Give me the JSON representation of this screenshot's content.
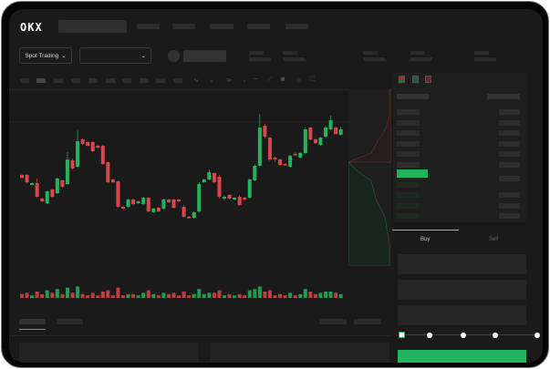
{
  "header": {
    "logo": "OKX"
  },
  "toolbar": {
    "market_select": "Spot Trading",
    "pair_select": ""
  },
  "trade": {
    "buy_tab": "Buy",
    "sell_tab": "Sell",
    "slider_percent": 0
  },
  "colors": {
    "up": "#22b35e",
    "down": "#d9474b",
    "background": "#1a1a1a",
    "buy_button": "#22b35e"
  },
  "chart_data": {
    "type": "candlestick",
    "candles": [
      [
        118,
        115,
        119,
        114,
        3
      ],
      [
        118,
        110,
        119,
        109,
        4
      ],
      [
        107,
        109,
        110,
        107,
        2
      ],
      [
        109,
        94,
        114,
        93,
        5
      ],
      [
        92,
        89,
        93,
        88,
        3
      ],
      [
        87,
        100,
        101,
        86,
        6
      ],
      [
        102,
        94,
        103,
        93,
        4
      ],
      [
        98,
        114,
        115,
        97,
        7
      ],
      [
        112,
        105,
        113,
        104,
        3
      ],
      [
        108,
        135,
        143,
        107,
        8
      ],
      [
        134,
        125,
        136,
        124,
        4
      ],
      [
        127,
        155,
        168,
        126,
        9
      ],
      [
        157,
        152,
        158,
        151,
        3
      ],
      [
        154,
        150,
        155,
        149,
        2
      ],
      [
        154,
        144,
        155,
        143,
        4
      ],
      [
        150,
        148,
        151,
        147,
        2
      ],
      [
        150,
        130,
        151,
        129,
        5
      ],
      [
        132,
        110,
        133,
        109,
        6
      ],
      [
        113,
        110,
        114,
        109,
        2
      ],
      [
        111,
        83,
        112,
        82,
        8
      ],
      [
        83,
        81,
        84,
        80,
        2
      ],
      [
        83,
        91,
        92,
        82,
        3
      ],
      [
        91,
        86,
        92,
        85,
        3
      ],
      [
        87,
        89,
        90,
        86,
        2
      ],
      [
        86,
        93,
        94,
        85,
        4
      ],
      [
        93,
        78,
        94,
        77,
        6
      ],
      [
        77,
        81,
        82,
        76,
        3
      ],
      [
        82,
        78,
        83,
        77,
        2
      ],
      [
        81,
        91,
        92,
        80,
        4
      ],
      [
        91,
        88,
        92,
        87,
        3
      ],
      [
        91,
        82,
        92,
        81,
        4
      ],
      [
        91,
        89,
        92,
        88,
        2
      ],
      [
        83,
        72,
        85,
        71,
        5
      ],
      [
        72,
        71,
        73,
        70,
        2
      ],
      [
        71,
        77,
        78,
        70,
        3
      ],
      [
        78,
        108,
        110,
        77,
        7
      ],
      [
        110,
        113,
        114,
        109,
        3
      ],
      [
        113,
        121,
        124,
        112,
        4
      ],
      [
        120,
        110,
        121,
        109,
        4
      ],
      [
        116,
        94,
        118,
        92,
        6
      ],
      [
        92,
        94,
        96,
        90,
        2
      ],
      [
        96,
        92,
        97,
        91,
        3
      ],
      [
        91,
        93,
        94,
        90,
        2
      ],
      [
        94,
        85,
        96,
        84,
        3
      ],
      [
        93,
        91,
        94,
        90,
        2
      ],
      [
        93,
        113,
        114,
        92,
        6
      ],
      [
        112,
        128,
        130,
        111,
        7
      ],
      [
        128,
        170,
        185,
        127,
        9
      ],
      [
        172,
        160,
        174,
        158,
        5
      ],
      [
        159,
        135,
        160,
        133,
        6
      ],
      [
        137,
        135,
        138,
        132,
        2
      ],
      [
        135,
        129,
        136,
        128,
        3
      ],
      [
        130,
        129,
        131,
        128,
        2
      ],
      [
        127,
        139,
        140,
        126,
        4
      ],
      [
        141,
        140,
        143,
        139,
        2
      ],
      [
        137,
        142,
        143,
        136,
        3
      ],
      [
        142,
        168,
        170,
        141,
        7
      ],
      [
        170,
        157,
        171,
        156,
        5
      ],
      [
        157,
        153,
        158,
        152,
        3
      ],
      [
        151,
        159,
        160,
        150,
        4
      ],
      [
        160,
        170,
        172,
        159,
        5
      ],
      [
        168,
        178,
        183,
        167,
        5
      ],
      [
        170,
        163,
        171,
        162,
        4
      ],
      [
        162,
        168,
        171,
        161,
        3
      ]
    ]
  }
}
